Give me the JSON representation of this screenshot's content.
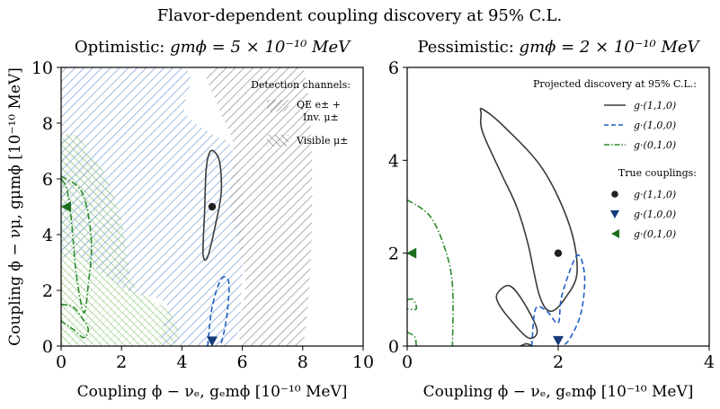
{
  "suptitle": "Flavor-dependent coupling discovery at 95% C.L.",
  "colors": {
    "black": "#3a3a3a",
    "blue": "#1f5fc4",
    "green": "#2b8a2b",
    "gray_hatch": "#9a9a9a",
    "blue_hatch": "#86a8d8",
    "green_hatch": "#8cc47a",
    "marker_black": "#222222",
    "marker_blue": "#163a7a",
    "marker_green": "#1e6e1e"
  },
  "chart_data": [
    {
      "type": "contour",
      "panel": "left",
      "title": "Optimistic: gm_phi = 5 x 10^-10 MeV",
      "title_prefix": "Optimistic: ",
      "title_math": "gmϕ = 5 × 10⁻¹⁰ MeV",
      "xlabel": "Coupling ϕ − νₑ, gₑmϕ [10⁻¹⁰ MeV]",
      "ylabel": "Coupling ϕ − νμ, gμmϕ [10⁻¹⁰ MeV]",
      "xlim": [
        0,
        10
      ],
      "ylim": [
        0,
        10
      ],
      "xticks": [
        0,
        2,
        4,
        6,
        8,
        10
      ],
      "yticks": [
        0,
        2,
        4,
        6,
        8,
        10
      ],
      "legend": {
        "title": "Detection channels:",
        "entries": [
          {
            "label_line1": "QE e± +",
            "label_line2": "Inv. μ±",
            "hatch": "/"
          },
          {
            "label_line1": "Visible μ±",
            "label_line2": "",
            "hatch": "\\"
          }
        ]
      },
      "regions": [
        {
          "name": "green-hatched-band",
          "color": "green",
          "points": [
            [
              0,
              7.2
            ],
            [
              1.2,
              6.6
            ],
            [
              2.0,
              4.5
            ],
            [
              2.4,
              2.2
            ],
            [
              3.6,
              1.2
            ],
            [
              3.6,
              0
            ],
            [
              0,
              0
            ]
          ]
        },
        {
          "name": "blue-hatched-band",
          "color": "blue",
          "points": [
            [
              0,
              10
            ],
            [
              4.0,
              10
            ],
            [
              4.1,
              8.4
            ],
            [
              5.0,
              7.6
            ],
            [
              5.6,
              7.2
            ],
            [
              6.0,
              5.5
            ],
            [
              6.0,
              2.6
            ],
            [
              5.6,
              0
            ],
            [
              3.4,
              0
            ],
            [
              3.5,
              1.5
            ],
            [
              2.2,
              2.0
            ],
            [
              0.6,
              3.2
            ],
            [
              0,
              3.6
            ]
          ]
        },
        {
          "name": "gray-hatched-band",
          "color": "gray",
          "points": [
            [
              5.0,
              10
            ],
            [
              8.0,
              10
            ],
            [
              8.0,
              0
            ],
            [
              6.0,
              0
            ],
            [
              6.1,
              2.5
            ],
            [
              5.6,
              5.0
            ],
            [
              5.7,
              7.2
            ],
            [
              5.2,
              8.6
            ]
          ]
        }
      ],
      "series": [
        {
          "name": "g·(1,1,0)",
          "style": "solid",
          "color": "black",
          "contour": [
            [
              5.05,
              7.0
            ],
            [
              5.25,
              6.6
            ],
            [
              5.3,
              5.5
            ],
            [
              5.1,
              4.3
            ],
            [
              4.85,
              3.2
            ],
            [
              4.7,
              3.3
            ],
            [
              4.75,
              4.8
            ],
            [
              4.8,
              6.3
            ],
            [
              4.9,
              6.9
            ]
          ]
        },
        {
          "name": "g·(1,0,0)",
          "style": "dashed",
          "color": "blue",
          "contour": [
            [
              4.85,
              0
            ],
            [
              5.0,
              1.4
            ],
            [
              5.3,
              2.4
            ],
            [
              5.55,
              2.3
            ],
            [
              5.5,
              1.2
            ],
            [
              5.35,
              0.3
            ],
            [
              5.25,
              0
            ]
          ]
        },
        {
          "name": "g·(0,1,0)",
          "style": "dashdot",
          "color": "green",
          "contour": [
            [
              0,
              6.1
            ],
            [
              0.7,
              5.5
            ],
            [
              1.0,
              3.8
            ],
            [
              0.9,
              2.2
            ],
            [
              0.75,
              1.2
            ],
            [
              0.5,
              2.6
            ],
            [
              0.35,
              4.4
            ],
            [
              0.2,
              5.6
            ],
            [
              0,
              6.0
            ]
          ]
        },
        {
          "name": "g·(0,1,0)-lower",
          "style": "dashdot",
          "color": "green",
          "contour": [
            [
              0,
              1.5
            ],
            [
              0.4,
              1.4
            ],
            [
              0.7,
              1.0
            ],
            [
              0.9,
              0.6
            ],
            [
              0.75,
              0.3
            ],
            [
              0.4,
              0.6
            ],
            [
              0,
              0.9
            ]
          ]
        }
      ],
      "true_couplings": [
        {
          "label": "g·(1,1,0)",
          "x": 5,
          "y": 5,
          "marker": "circle",
          "color": "black"
        },
        {
          "label": "g·(1,0,0)",
          "x": 5,
          "y": 0.15,
          "marker": "triangle-down",
          "color": "blue"
        },
        {
          "label": "g·(0,1,0)",
          "x": 0.15,
          "y": 5,
          "marker": "triangle-left",
          "color": "green"
        }
      ]
    },
    {
      "type": "contour",
      "panel": "right",
      "title": "Pessimistic: gm_phi = 2 x 10^-10 MeV",
      "title_prefix": "Pessimistic: ",
      "title_math": "gmϕ = 2 × 10⁻¹⁰ MeV",
      "xlabel": "Coupling ϕ − νₑ, gₑmϕ [10⁻¹⁰ MeV]",
      "xlim": [
        0,
        4
      ],
      "ylim": [
        0,
        6
      ],
      "xticks": [
        0,
        2,
        4
      ],
      "yticks": [
        0,
        2,
        4,
        6
      ],
      "legend_projected": {
        "title": "Projected discovery at 95% C.L.:",
        "entries": [
          {
            "label": "g·(1,1,0)",
            "style": "solid",
            "color": "black"
          },
          {
            "label": "g·(1,0,0)",
            "style": "dashed",
            "color": "blue"
          },
          {
            "label": "g·(0,1,0)",
            "style": "dashdot",
            "color": "green"
          }
        ]
      },
      "legend_true": {
        "title": "True couplings:",
        "entries": [
          {
            "label": "g·(1,1,0)",
            "marker": "circle",
            "color": "black"
          },
          {
            "label": "g·(1,0,0)",
            "marker": "triangle-down",
            "color": "blue"
          },
          {
            "label": "g·(0,1,0)",
            "marker": "triangle-left",
            "color": "green"
          }
        ]
      },
      "series": [
        {
          "name": "g·(1,1,0)",
          "style": "solid",
          "color": "black",
          "contour": [
            [
              1.0,
              5.1
            ],
            [
              1.3,
              4.7
            ],
            [
              1.8,
              3.8
            ],
            [
              2.15,
              2.6
            ],
            [
              2.25,
              1.6
            ],
            [
              2.1,
              1.05
            ],
            [
              1.9,
              0.75
            ],
            [
              1.75,
              1.1
            ],
            [
              1.6,
              2.2
            ],
            [
              1.45,
              3.0
            ],
            [
              1.25,
              3.7
            ],
            [
              1.0,
              4.6
            ],
            [
              0.98,
              5.0
            ]
          ]
        },
        {
          "name": "g·(1,1,0)-small",
          "style": "solid",
          "color": "black",
          "contour": [
            [
              1.2,
              1.15
            ],
            [
              1.35,
              1.3
            ],
            [
              1.52,
              1.0
            ],
            [
              1.72,
              0.35
            ],
            [
              1.6,
              0.18
            ],
            [
              1.35,
              0.6
            ],
            [
              1.2,
              0.95
            ]
          ]
        },
        {
          "name": "g·(1,1,0)-base",
          "style": "solid",
          "color": "black",
          "contour": [
            [
              1.5,
              0
            ],
            [
              1.58,
              0.05
            ],
            [
              1.66,
              0
            ]
          ]
        },
        {
          "name": "g·(1,0,0)",
          "style": "dashed",
          "color": "blue",
          "contour": [
            [
              1.65,
              0
            ],
            [
              1.7,
              0.8
            ],
            [
              1.85,
              0.75
            ],
            [
              2.0,
              0.5
            ],
            [
              2.05,
              1.1
            ],
            [
              2.25,
              1.95
            ],
            [
              2.35,
              1.5
            ],
            [
              2.3,
              0.7
            ],
            [
              2.15,
              0.15
            ],
            [
              2.05,
              0
            ]
          ]
        },
        {
          "name": "g·(0,1,0)",
          "style": "dashdot",
          "color": "green",
          "contour": [
            [
              0,
              3.15
            ],
            [
              0.3,
              2.8
            ],
            [
              0.5,
              2.1
            ],
            [
              0.6,
              1.3
            ],
            [
              0.6,
              0
            ]
          ]
        },
        {
          "name": "g·(0,1,0)-inner",
          "style": "dashdot",
          "color": "green",
          "contour": [
            [
              0,
              1.0
            ],
            [
              0.08,
              1.0
            ],
            [
              0.12,
              0.8
            ],
            [
              0,
              0.8
            ]
          ]
        },
        {
          "name": "g·(0,1,0)-base",
          "style": "dashdot",
          "color": "green",
          "contour": [
            [
              0,
              0.3
            ],
            [
              0.1,
              0.2
            ],
            [
              0.12,
              0
            ]
          ]
        }
      ],
      "true_couplings": [
        {
          "label": "g·(1,1,0)",
          "x": 2,
          "y": 2,
          "marker": "circle",
          "color": "black"
        },
        {
          "label": "g·(1,0,0)",
          "x": 2,
          "y": 0.1,
          "marker": "triangle-down",
          "color": "blue"
        },
        {
          "label": "g·(0,1,0)",
          "x": 0.05,
          "y": 2,
          "marker": "triangle-left",
          "color": "green"
        }
      ]
    }
  ]
}
